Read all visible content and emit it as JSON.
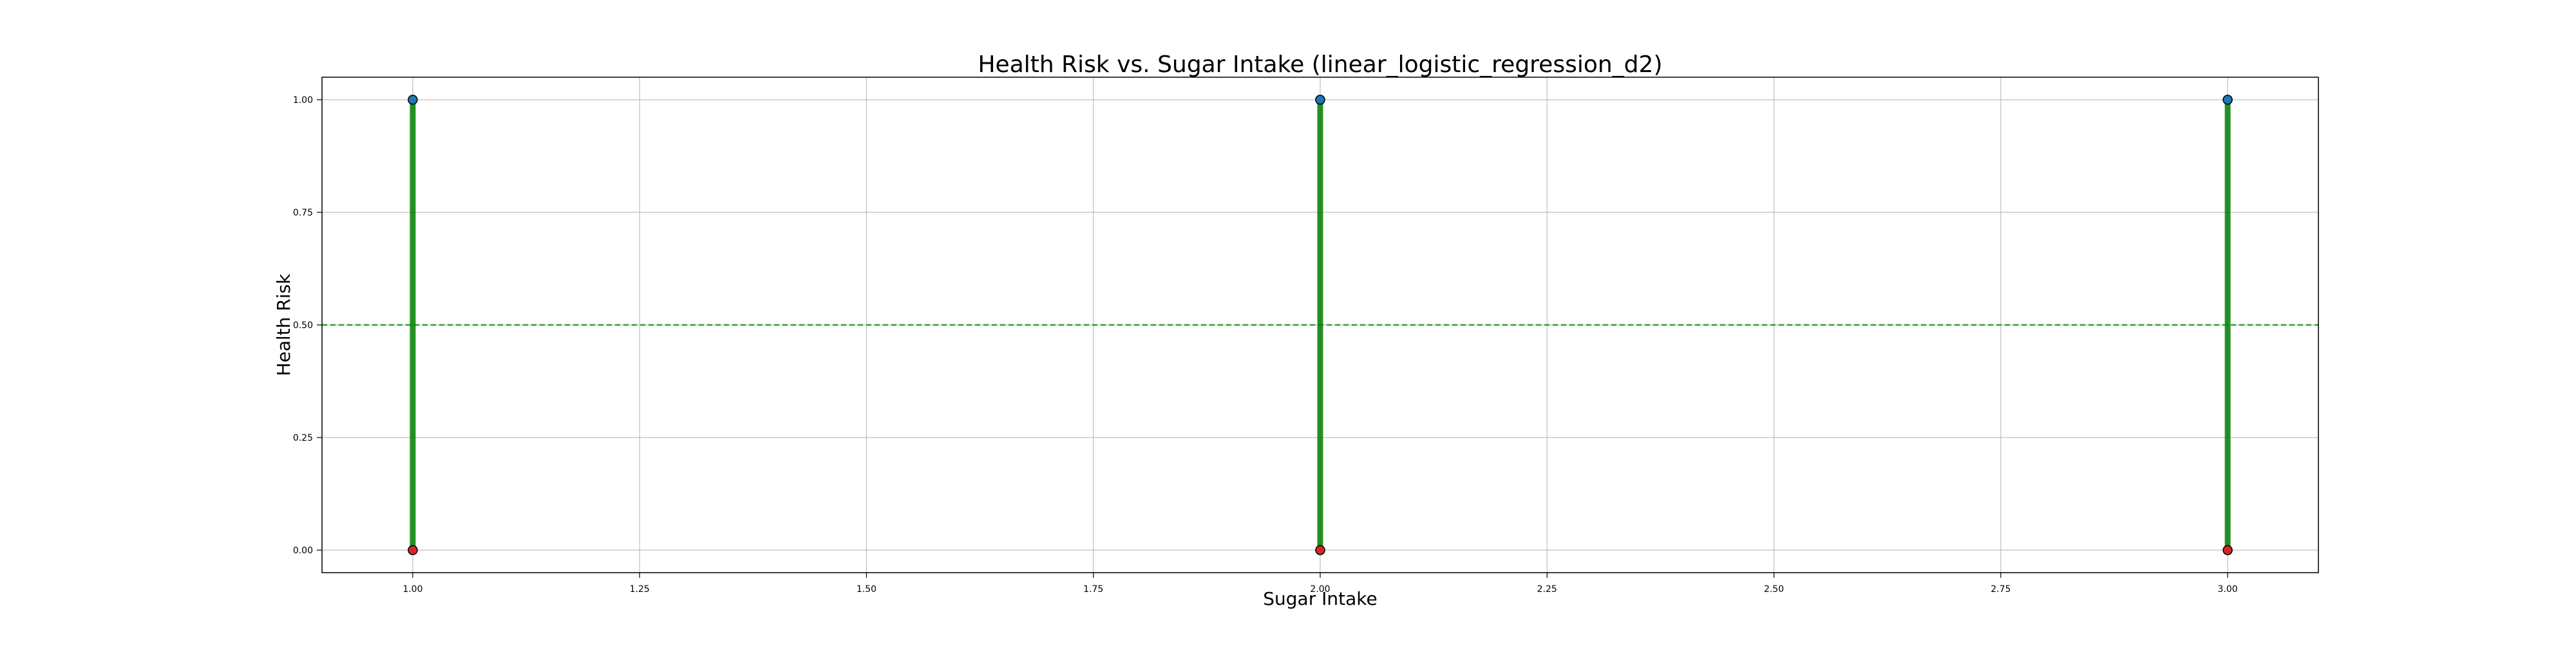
{
  "chart_data": {
    "type": "scatter",
    "title": "Health Risk vs. Sugar Intake (linear_logistic_regression_d2)",
    "xlabel": "Sugar Intake",
    "ylabel": "Health Risk",
    "xlim": [
      0.9,
      3.1
    ],
    "ylim": [
      -0.05,
      1.05
    ],
    "grid": true,
    "x_ticks": [
      "1.00",
      "1.25",
      "1.50",
      "1.75",
      "2.00",
      "2.25",
      "2.50",
      "2.75",
      "3.00"
    ],
    "x_tick_values": [
      1.0,
      1.25,
      1.5,
      1.75,
      2.0,
      2.25,
      2.5,
      2.75,
      3.0
    ],
    "y_ticks": [
      "0.00",
      "0.25",
      "0.50",
      "0.75",
      "1.00"
    ],
    "y_tick_values": [
      0.0,
      0.25,
      0.5,
      0.75,
      1.0
    ],
    "threshold": 0.5,
    "series": [
      {
        "x": [
          1,
          1,
          2,
          2,
          3,
          3
        ],
        "y": [
          0,
          1,
          0,
          1,
          0,
          1
        ]
      }
    ],
    "colors": {
      "class0": "#d62728",
      "class1": "#1f77b4",
      "fit": "#008000",
      "threshold": "#2ca02c",
      "grid": "#b0b0b0",
      "axes": "#000000"
    }
  }
}
